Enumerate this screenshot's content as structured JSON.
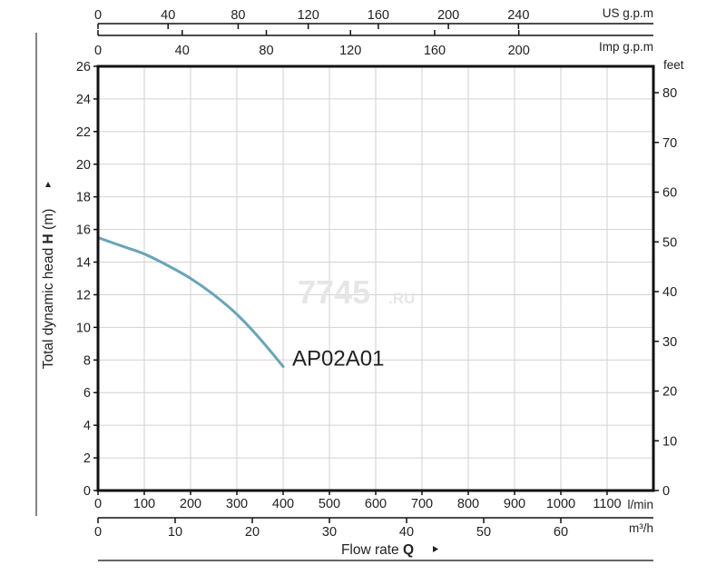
{
  "chart_data": {
    "type": "line",
    "watermark": {
      "main": "7745",
      "suffix": ".RU"
    },
    "ylabel": {
      "prefix": "Total dynamic head ",
      "bold": "H",
      "suffix": " (m)"
    },
    "xlabel": {
      "prefix": "Flow rate ",
      "bold": "Q"
    },
    "x_unit": "l/min",
    "xlim": [
      0,
      1200
    ],
    "ylim": [
      0,
      26
    ],
    "x_ticks": [
      0,
      100,
      200,
      300,
      400,
      500,
      600,
      700,
      800,
      900,
      1000,
      1100
    ],
    "y_ticks": [
      0,
      2,
      4,
      6,
      8,
      10,
      12,
      14,
      16,
      18,
      20,
      22,
      24,
      26
    ],
    "grid": true,
    "secondary_axes": {
      "us_gpm": {
        "unit": "US g.p.m",
        "ticks": [
          0,
          40,
          80,
          120,
          160,
          200,
          240
        ],
        "per_lmin": 0.264172
      },
      "imp_gpm": {
        "unit": "Imp g.p.m",
        "ticks": [
          0,
          40,
          80,
          120,
          160,
          200
        ],
        "per_lmin": 0.219969
      },
      "feet": {
        "unit": "feet",
        "ticks": [
          0,
          10,
          20,
          30,
          40,
          50,
          60,
          70,
          80
        ],
        "per_m": 3.28084
      },
      "m3h": {
        "unit": "m³/h",
        "ticks": [
          0,
          10,
          20,
          30,
          40,
          50,
          60
        ],
        "per_lmin": 0.06
      }
    },
    "series": [
      {
        "name": "AP02A01",
        "color": "#6aa4b7",
        "x": [
          0,
          50,
          100,
          150,
          200,
          250,
          300,
          350,
          400
        ],
        "y": [
          15.5,
          15.0,
          14.5,
          13.8,
          13.0,
          12.0,
          10.8,
          9.3,
          7.6
        ]
      }
    ]
  }
}
